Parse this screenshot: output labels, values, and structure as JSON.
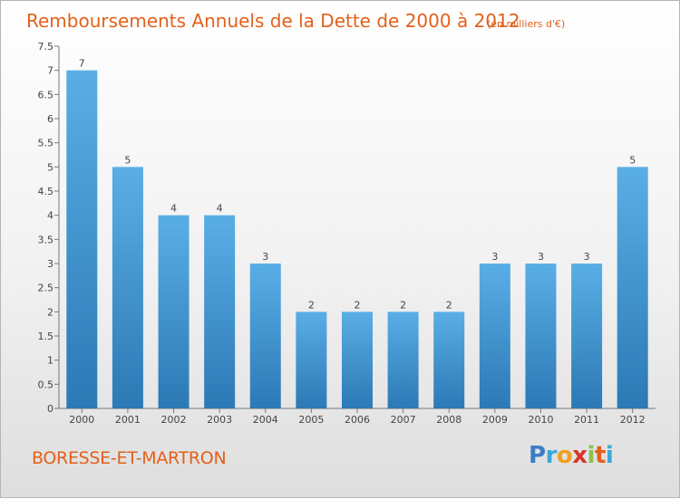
{
  "header": {
    "title": "Remboursements Annuels de la Dette de 2000 à 2012",
    "unit": "(en milliers d'€)"
  },
  "footer": {
    "commune": "BORESSE-ET-MARTRON",
    "brand_letters": [
      "P",
      "r",
      "o",
      "x",
      "i",
      "t",
      "i"
    ],
    "brand_colors": [
      "#3b7dc4",
      "#3aa8d8",
      "#f0a020",
      "#d9342a",
      "#8bc34a",
      "#e2611a",
      "#3aa8d8"
    ]
  },
  "colors": {
    "bar_top": "#5aaee6",
    "bar_bottom": "#2c79b5",
    "axis": "#777777",
    "title": "#e2611a"
  },
  "chart_data": {
    "type": "bar",
    "title": "Remboursements Annuels de la Dette de 2000 à 2012",
    "xlabel": "",
    "ylabel": "",
    "categories": [
      "2000",
      "2001",
      "2002",
      "2003",
      "2004",
      "2005",
      "2006",
      "2007",
      "2008",
      "2009",
      "2010",
      "2011",
      "2012"
    ],
    "values": [
      7,
      5,
      4,
      4,
      3,
      2,
      2,
      2,
      2,
      3,
      3,
      3,
      5
    ],
    "data_labels": [
      "7",
      "5",
      "4",
      "4",
      "3",
      "2",
      "2",
      "2",
      "2",
      "3",
      "3",
      "3",
      "5"
    ],
    "ylim": [
      0,
      7.5
    ],
    "yticks": [
      0,
      0.5,
      1,
      1.5,
      2,
      2.5,
      3,
      3.5,
      4,
      4.5,
      5,
      5.5,
      6,
      6.5,
      7,
      7.5
    ],
    "ytick_labels": [
      "0",
      "0.5",
      "1",
      "1.5",
      "2",
      "2.5",
      "3",
      "3.5",
      "4",
      "4.5",
      "5",
      "5.5",
      "6",
      "6.5",
      "7",
      "7.5"
    ],
    "grid": false,
    "legend": "none"
  }
}
